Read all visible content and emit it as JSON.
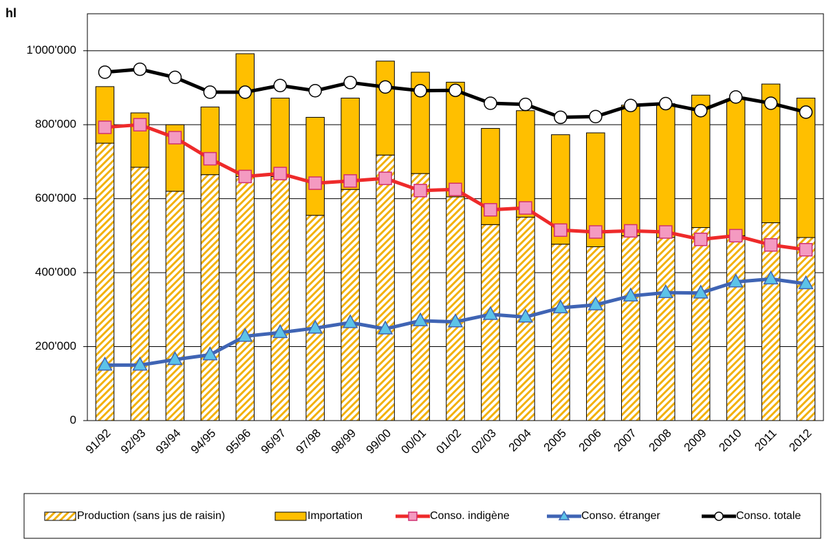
{
  "chart_data": {
    "type": "bar",
    "y_label": "hl",
    "stacked": true,
    "categories": [
      "91/92",
      "92/93",
      "93/94",
      "94/95",
      "95/96",
      "96/97",
      "97/98",
      "98/99",
      "99/00",
      "00/01",
      "01/02",
      "02/03",
      "2004",
      "2005",
      "2006",
      "2007",
      "2008",
      "2009",
      "2010",
      "2011",
      "2012"
    ],
    "series": [
      {
        "name": "Production (sans jus de raisin)",
        "type": "bar",
        "color": "#f2b10c",
        "hatch": true,
        "values": [
          750000,
          685000,
          620000,
          665000,
          660000,
          660000,
          555000,
          625000,
          718000,
          668000,
          605000,
          530000,
          550000,
          477000,
          470000,
          500000,
          495000,
          522000,
          500000,
          535000,
          495000
        ]
      },
      {
        "name": "Importation",
        "type": "bar",
        "color": "#ffbf00",
        "values": [
          153000,
          147000,
          180000,
          183000,
          332000,
          212000,
          265000,
          247000,
          254000,
          274000,
          310000,
          260000,
          288000,
          296000,
          308000,
          353000,
          362000,
          358000,
          370000,
          375000,
          377000
        ]
      },
      {
        "name": "Conso. indigène",
        "type": "line",
        "color": "#ee2a2a",
        "marker": "square",
        "marker_color": "#f49ac1",
        "values": [
          793000,
          800000,
          765000,
          708000,
          660000,
          668000,
          642000,
          648000,
          655000,
          622000,
          625000,
          570000,
          575000,
          515000,
          510000,
          513000,
          510000,
          490000,
          500000,
          475000,
          462000
        ]
      },
      {
        "name": "Conso. étranger",
        "type": "line",
        "color": "#3f64b4",
        "marker": "triangle",
        "marker_color": "#5cc3e8",
        "values": [
          150000,
          150000,
          165000,
          178000,
          228000,
          238000,
          250000,
          265000,
          248000,
          270000,
          267000,
          287000,
          280000,
          305000,
          313000,
          337000,
          346000,
          345000,
          375000,
          383000,
          370000
        ]
      },
      {
        "name": "Conso. totale",
        "type": "line",
        "color": "#000000",
        "marker": "circle",
        "marker_color": "#ffffff",
        "values": [
          942000,
          950000,
          928000,
          888000,
          888000,
          906000,
          892000,
          914000,
          902000,
          892000,
          893000,
          858000,
          855000,
          820000,
          822000,
          852000,
          857000,
          838000,
          875000,
          858000,
          834000
        ]
      }
    ],
    "ylim": [
      0,
      1100000
    ],
    "yticks": [
      0,
      {
        "value": 200000,
        "label": "200'000"
      },
      {
        "value": 400000,
        "label": "400'000"
      },
      {
        "value": 600000,
        "label": "600'000"
      },
      {
        "value": 800000,
        "label": "800'000"
      },
      {
        "value": 1000000,
        "label": "1'000'000"
      }
    ],
    "grid": true,
    "legend": "bottom"
  }
}
